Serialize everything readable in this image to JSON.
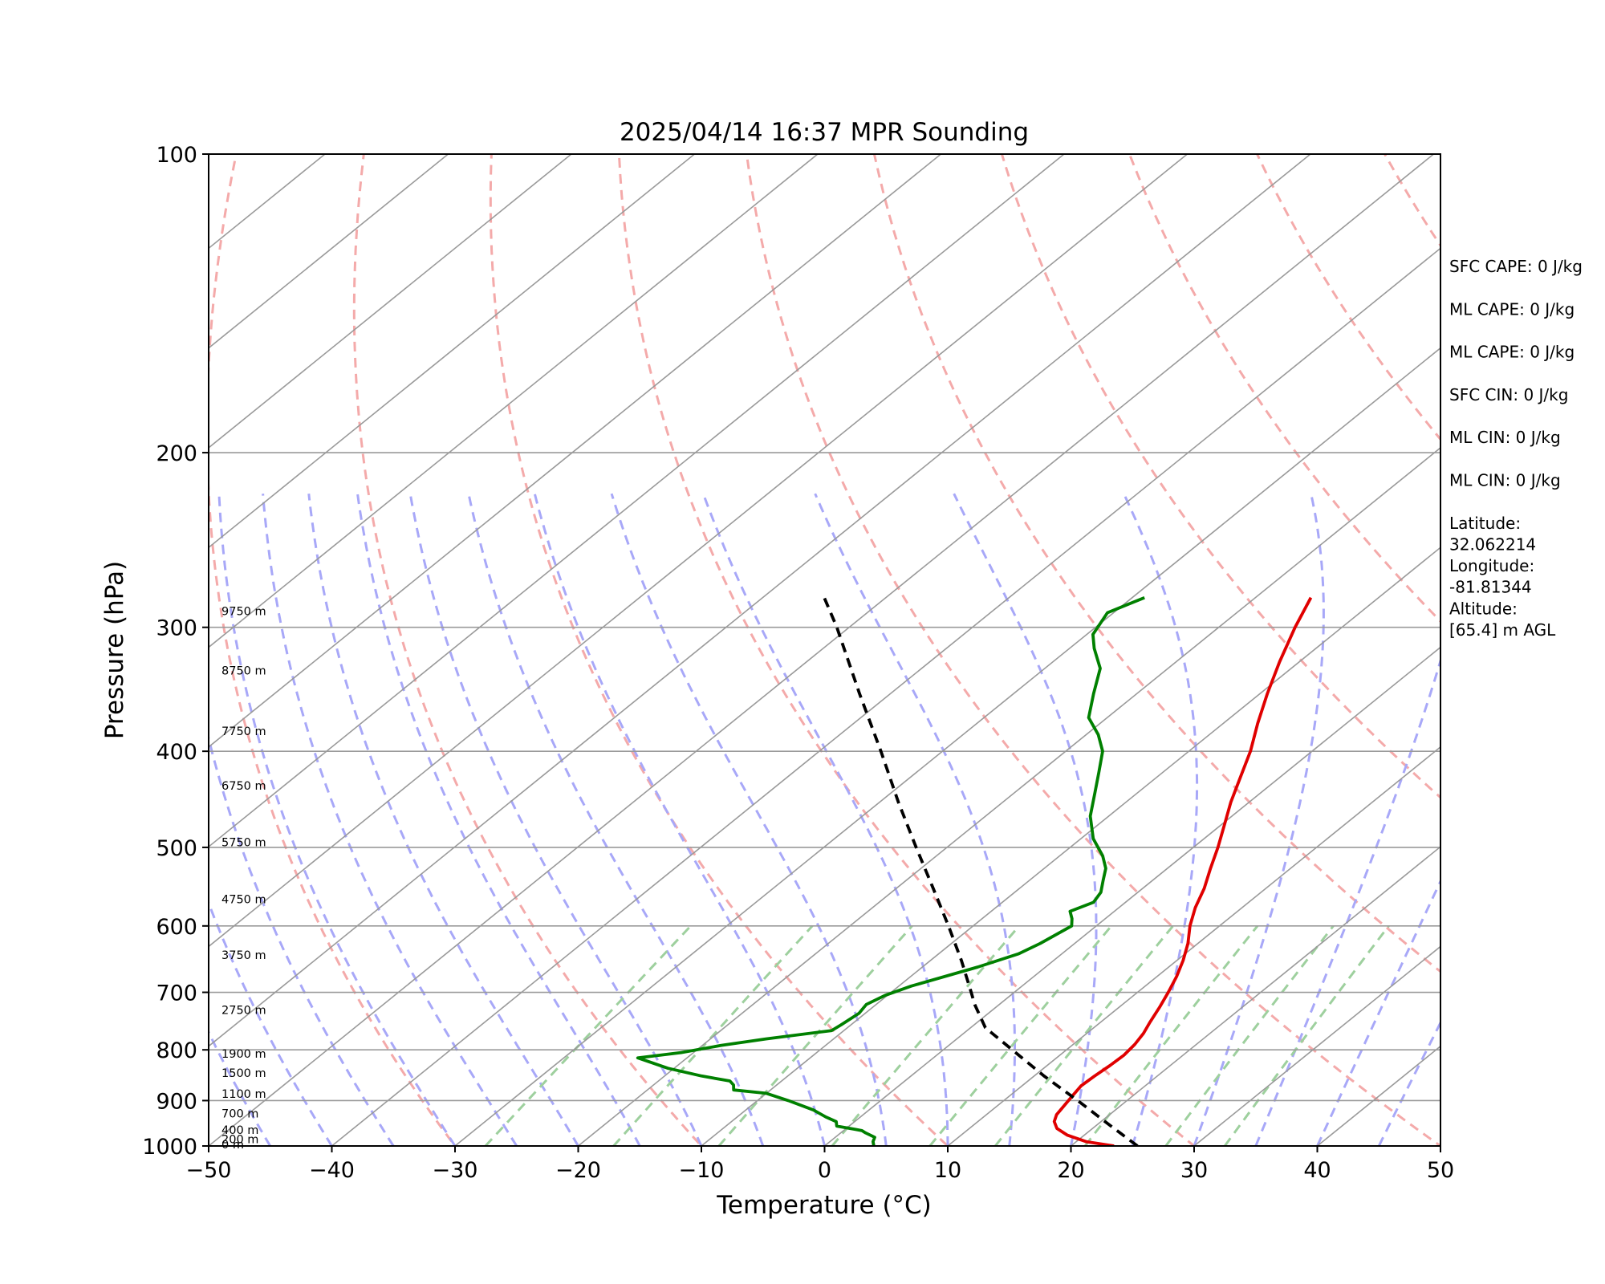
{
  "chart_data": {
    "type": "line",
    "subtype": "skew-t log-p diagram",
    "title": "2025/04/14 16:37 MPR Sounding",
    "xlabel": "Temperature (°C)",
    "ylabel": "Pressure (hPa)",
    "xlim": [
      -50,
      50
    ],
    "ylim": [
      1000,
      100
    ],
    "y_scale": "log",
    "grid": true,
    "x_ticks": [
      "−50",
      "−40",
      "−30",
      "−20",
      "−10",
      "0",
      "10",
      "20",
      "30",
      "40",
      "50"
    ],
    "y_ticks": [
      "100",
      "200",
      "300",
      "400",
      "500",
      "600",
      "700",
      "800",
      "900",
      "1000"
    ],
    "series": [
      {
        "key": "temperature",
        "color": "#e00000",
        "points": [
          [
            1000,
            23.5
          ],
          [
            990,
            20.8
          ],
          [
            975,
            18.6
          ],
          [
            960,
            17.1
          ],
          [
            945,
            16.2
          ],
          [
            930,
            15.7
          ],
          [
            910,
            15.4
          ],
          [
            890,
            15.1
          ],
          [
            870,
            14.8
          ],
          [
            850,
            14.9
          ],
          [
            830,
            15.1
          ],
          [
            810,
            15.2
          ],
          [
            790,
            15.0
          ],
          [
            770,
            14.6
          ],
          [
            750,
            14.0
          ],
          [
            725,
            13.3
          ],
          [
            700,
            12.5
          ],
          [
            675,
            11.6
          ],
          [
            650,
            10.5
          ],
          [
            625,
            9.2
          ],
          [
            600,
            7.6
          ],
          [
            575,
            6.2
          ],
          [
            550,
            5.0
          ],
          [
            525,
            3.5
          ],
          [
            500,
            2.0
          ],
          [
            475,
            0.3
          ],
          [
            450,
            -1.5
          ],
          [
            425,
            -3.2
          ],
          [
            400,
            -5.0
          ],
          [
            375,
            -7.2
          ],
          [
            350,
            -9.4
          ],
          [
            325,
            -11.6
          ],
          [
            300,
            -13.8
          ],
          [
            280,
            -15.5
          ]
        ]
      },
      {
        "key": "dewpoint",
        "color": "#008000",
        "points": [
          [
            1000,
            4.0
          ],
          [
            990,
            3.5
          ],
          [
            980,
            3.2
          ],
          [
            970,
            2.0
          ],
          [
            965,
            1.5
          ],
          [
            962,
            0.8
          ],
          [
            955,
            -1.0
          ],
          [
            945,
            -1.5
          ],
          [
            935,
            -2.8
          ],
          [
            920,
            -4.5
          ],
          [
            900,
            -7.5
          ],
          [
            885,
            -10.0
          ],
          [
            878,
            -13.0
          ],
          [
            868,
            -13.5
          ],
          [
            860,
            -14.2
          ],
          [
            850,
            -17.0
          ],
          [
            835,
            -20.5
          ],
          [
            815,
            -24.0
          ],
          [
            805,
            -21.0
          ],
          [
            792,
            -18.5
          ],
          [
            780,
            -15.5
          ],
          [
            765,
            -11.0
          ],
          [
            755,
            -10.8
          ],
          [
            735,
            -10.5
          ],
          [
            720,
            -10.8
          ],
          [
            705,
            -10.2
          ],
          [
            690,
            -9.0
          ],
          [
            660,
            -5.5
          ],
          [
            640,
            -3.5
          ],
          [
            625,
            -2.8
          ],
          [
            600,
            -2.0
          ],
          [
            590,
            -2.7
          ],
          [
            580,
            -3.6
          ],
          [
            568,
            -2.6
          ],
          [
            555,
            -3.0
          ],
          [
            540,
            -4.0
          ],
          [
            525,
            -5.0
          ],
          [
            510,
            -6.5
          ],
          [
            490,
            -9.0
          ],
          [
            465,
            -11.5
          ],
          [
            440,
            -13.5
          ],
          [
            420,
            -15.2
          ],
          [
            400,
            -17.0
          ],
          [
            385,
            -19.0
          ],
          [
            370,
            -21.5
          ],
          [
            350,
            -23.5
          ],
          [
            330,
            -25.5
          ],
          [
            315,
            -28.0
          ],
          [
            305,
            -29.5
          ],
          [
            290,
            -30.5
          ],
          [
            280,
            -29.0
          ]
        ]
      },
      {
        "key": "parcel",
        "color": "#000000",
        "points": [
          [
            1000,
            25.4
          ],
          [
            950,
            20.8
          ],
          [
            900,
            16.0
          ],
          [
            850,
            10.8
          ],
          [
            800,
            5.6
          ],
          [
            760,
            1.2
          ],
          [
            720,
            -2.0
          ],
          [
            700,
            -3.5
          ],
          [
            650,
            -7.5
          ],
          [
            600,
            -12.0
          ],
          [
            550,
            -17.0
          ],
          [
            500,
            -22.5
          ],
          [
            450,
            -28.5
          ],
          [
            400,
            -35.0
          ],
          [
            350,
            -42.5
          ],
          [
            300,
            -51.0
          ],
          [
            280,
            -55.0
          ]
        ]
      }
    ],
    "height_labels": [
      "0 m",
      "200 m",
      "400 m",
      "700 m",
      "1100 m",
      "1500 m",
      "1900 m",
      "2750 m",
      "3750 m",
      "4750 m",
      "5750 m",
      "6750 m",
      "7750 m",
      "8750 m",
      "9750 m"
    ],
    "height_label_pressures": [
      1000,
      988,
      967,
      931,
      889,
      847,
      810,
      732,
      644,
      566,
      496,
      435,
      383,
      333,
      290
    ],
    "dry_adiabats_theta_K": [
      243.15,
      263.15,
      283.15,
      303.15,
      323.15,
      343.15,
      363.15,
      383.15,
      403.15,
      423.15,
      443.15,
      463.15,
      483.15,
      503.15,
      523.15,
      543.15,
      563.15
    ],
    "moist_adiabats_start_C": [
      -50,
      -45,
      -40,
      -35,
      -30,
      -25,
      -20,
      -15,
      -10,
      -5,
      0,
      5,
      10,
      15,
      20,
      25,
      30,
      35,
      40,
      45
    ],
    "mixing_ratio_lines": [
      0.0004,
      0.001,
      0.002,
      0.004,
      0.007,
      0.01,
      0.016,
      0.024,
      0.032
    ],
    "colors": {
      "dry_adiabat": "#f4aaaa",
      "moist_adiabat": "#a8a8f8",
      "mixing_ratio": "#9ed09e",
      "isotherm": "#9a9a9a",
      "isobar": "#9a9a9a"
    },
    "side_panel": [
      [
        "SFC CAPE: 0 J/kg"
      ],
      [
        "ML CAPE: 0 J/kg"
      ],
      [
        "ML CAPE: 0 J/kg"
      ],
      [
        "SFC CIN: 0 J/kg"
      ],
      [
        "ML CIN: 0 J/kg"
      ],
      [
        "ML CIN: 0 J/kg"
      ],
      [
        "Latitude:",
        "32.062214"
      ],
      [
        "Longitude:",
        "-81.81344"
      ],
      [
        "Altitude:",
        "[65.4] m AGL"
      ]
    ]
  }
}
